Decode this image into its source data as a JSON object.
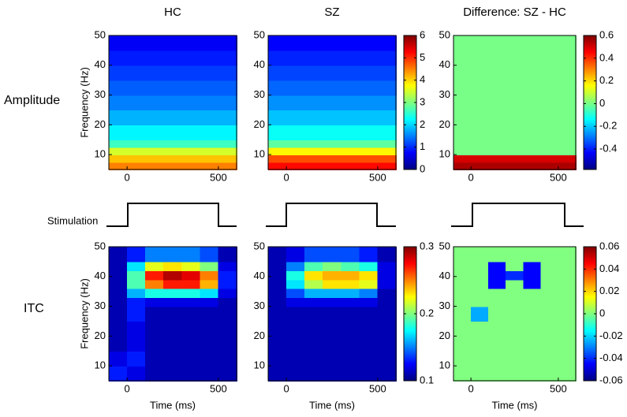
{
  "row_labels": [
    "Amplitude",
    "Stimulation",
    "ITC"
  ],
  "chart_data": [
    {
      "type": "heatmap",
      "title": "HC",
      "ylabel": "Frequency (Hz)",
      "colormap": "jet",
      "xbins": [
        -100,
        600
      ],
      "ybins": [
        5,
        7.5,
        10,
        12.5,
        15,
        20,
        25,
        30,
        35,
        40,
        45,
        50
      ],
      "values": [
        [
          4.5
        ],
        [
          4.1
        ],
        [
          3.5
        ],
        [
          2.6
        ],
        [
          2.2
        ],
        [
          1.8
        ],
        [
          1.5
        ],
        [
          1.3
        ],
        [
          1.1
        ],
        [
          0.9
        ],
        [
          0.7
        ]
      ],
      "xlim": [
        -100,
        600
      ],
      "ylim": [
        5,
        50
      ],
      "xticks": [
        0,
        500
      ],
      "yticks": [
        10,
        20,
        30,
        40,
        50
      ],
      "clim": [
        0,
        6
      ]
    },
    {
      "type": "heatmap",
      "title": "SZ",
      "colormap": "jet",
      "xbins": [
        -100,
        600
      ],
      "ybins": [
        5,
        7.5,
        10,
        12.5,
        15,
        20,
        25,
        30,
        35,
        40,
        45,
        50
      ],
      "values": [
        [
          5.2
        ],
        [
          4.8
        ],
        [
          3.8
        ],
        [
          2.8
        ],
        [
          2.3
        ],
        [
          1.9
        ],
        [
          1.6
        ],
        [
          1.35
        ],
        [
          1.15
        ],
        [
          0.95
        ],
        [
          0.75
        ]
      ],
      "xlim": [
        -100,
        600
      ],
      "ylim": [
        5,
        50
      ],
      "xticks": [
        0,
        500
      ],
      "yticks": [
        10,
        20,
        30,
        40,
        50
      ],
      "clim": [
        0,
        6
      ],
      "cticks": [
        0,
        1,
        2,
        3,
        4,
        5,
        6
      ]
    },
    {
      "type": "heatmap",
      "title": "Difference: SZ - HC",
      "colormap": "jet",
      "xbins": [
        -100,
        600
      ],
      "ybins": [
        5,
        7.5,
        10,
        12.5,
        15,
        20,
        25,
        30,
        35,
        40,
        45,
        50
      ],
      "values": [
        [
          0.55
        ],
        [
          0.5
        ],
        [
          0
        ],
        [
          0
        ],
        [
          0
        ],
        [
          0
        ],
        [
          0
        ],
        [
          0
        ],
        [
          0
        ],
        [
          0
        ],
        [
          0
        ]
      ],
      "xlim": [
        -100,
        600
      ],
      "ylim": [
        5,
        50
      ],
      "xticks": [
        0,
        500
      ],
      "yticks": [
        10,
        20,
        30,
        40,
        50
      ],
      "clim": [
        -0.58,
        0.6
      ],
      "cticks": [
        -0.4,
        -0.2,
        0,
        0.2,
        0.4,
        0.6
      ]
    },
    {
      "type": "heatmap",
      "ylabel": "Frequency (Hz)",
      "xlabel": "Time (ms)",
      "colormap": "jet",
      "xbins": [
        -100,
        0,
        100,
        200,
        300,
        400,
        500,
        600
      ],
      "ybins": [
        5,
        10,
        15,
        20,
        25,
        30,
        33,
        36,
        39,
        42,
        45,
        50
      ],
      "values": [
        [
          0.13,
          0.12,
          0.11,
          0.11,
          0.11,
          0.11,
          0.11
        ],
        [
          0.12,
          0.13,
          0.11,
          0.11,
          0.11,
          0.11,
          0.11
        ],
        [
          0.11,
          0.12,
          0.11,
          0.11,
          0.11,
          0.11,
          0.11
        ],
        [
          0.11,
          0.12,
          0.11,
          0.11,
          0.11,
          0.11,
          0.11
        ],
        [
          0.11,
          0.13,
          0.11,
          0.11,
          0.11,
          0.11,
          0.11
        ],
        [
          0.11,
          0.13,
          0.12,
          0.12,
          0.12,
          0.12,
          0.11
        ],
        [
          0.11,
          0.16,
          0.18,
          0.18,
          0.18,
          0.17,
          0.12
        ],
        [
          0.11,
          0.19,
          0.25,
          0.27,
          0.27,
          0.24,
          0.13
        ],
        [
          0.11,
          0.19,
          0.27,
          0.29,
          0.28,
          0.25,
          0.13
        ],
        [
          0.11,
          0.17,
          0.22,
          0.23,
          0.22,
          0.2,
          0.12
        ],
        [
          0.11,
          0.13,
          0.15,
          0.15,
          0.15,
          0.14,
          0.11
        ]
      ],
      "xlim": [
        -100,
        600
      ],
      "ylim": [
        5,
        50
      ],
      "xticks": [
        0,
        500
      ],
      "yticks": [
        10,
        20,
        30,
        40,
        50
      ],
      "clim": [
        0.1,
        0.3
      ]
    },
    {
      "type": "heatmap",
      "xlabel": "Time (ms)",
      "colormap": "jet",
      "xbins": [
        -100,
        0,
        100,
        200,
        300,
        400,
        500,
        600
      ],
      "ybins": [
        5,
        10,
        15,
        20,
        25,
        30,
        33,
        36,
        39,
        42,
        45,
        50
      ],
      "values": [
        [
          0.11,
          0.11,
          0.11,
          0.11,
          0.11,
          0.11,
          0.11
        ],
        [
          0.11,
          0.11,
          0.11,
          0.11,
          0.11,
          0.11,
          0.11
        ],
        [
          0.11,
          0.11,
          0.11,
          0.11,
          0.11,
          0.11,
          0.11
        ],
        [
          0.11,
          0.11,
          0.11,
          0.11,
          0.11,
          0.11,
          0.11
        ],
        [
          0.11,
          0.11,
          0.11,
          0.11,
          0.11,
          0.11,
          0.11
        ],
        [
          0.11,
          0.12,
          0.12,
          0.12,
          0.12,
          0.12,
          0.11
        ],
        [
          0.11,
          0.14,
          0.16,
          0.16,
          0.16,
          0.15,
          0.11
        ],
        [
          0.11,
          0.17,
          0.21,
          0.23,
          0.23,
          0.22,
          0.12
        ],
        [
          0.11,
          0.18,
          0.23,
          0.24,
          0.24,
          0.23,
          0.12
        ],
        [
          0.11,
          0.15,
          0.19,
          0.2,
          0.19,
          0.18,
          0.12
        ],
        [
          0.11,
          0.12,
          0.14,
          0.14,
          0.14,
          0.13,
          0.11
        ]
      ],
      "xlim": [
        -100,
        600
      ],
      "ylim": [
        5,
        50
      ],
      "xticks": [
        0,
        500
      ],
      "yticks": [
        10,
        20,
        30,
        40,
        50
      ],
      "clim": [
        0.1,
        0.3
      ],
      "cticks": [
        0.1,
        0.2,
        0.3
      ]
    },
    {
      "type": "heatmap",
      "xlabel": "Time (ms)",
      "colormap": "jet",
      "xbins": [
        -100,
        0,
        100,
        200,
        300,
        400,
        500,
        600
      ],
      "ybins": [
        5,
        10,
        15,
        20,
        25,
        30,
        33,
        36,
        39,
        42,
        45,
        50
      ],
      "values": [
        [
          0,
          0,
          0,
          0,
          0,
          0,
          0
        ],
        [
          0,
          0,
          0,
          0,
          0,
          0,
          0
        ],
        [
          0,
          0,
          0,
          0,
          0,
          0,
          0
        ],
        [
          0,
          0,
          0,
          0,
          0,
          0,
          0
        ],
        [
          0,
          -0.025,
          0,
          0,
          0,
          0,
          0
        ],
        [
          0,
          0,
          0,
          0,
          0,
          0,
          0
        ],
        [
          0,
          0,
          0,
          0,
          0,
          0,
          0
        ],
        [
          0,
          0,
          -0.045,
          0,
          -0.045,
          0,
          0
        ],
        [
          0,
          0,
          -0.045,
          -0.04,
          -0.045,
          0,
          0
        ],
        [
          0,
          0,
          -0.045,
          0,
          -0.045,
          0,
          0
        ],
        [
          0,
          0,
          0,
          0,
          0,
          0,
          0
        ]
      ],
      "xlim": [
        -100,
        600
      ],
      "ylim": [
        5,
        50
      ],
      "xticks": [
        0,
        500
      ],
      "yticks": [
        10,
        20,
        30,
        40,
        50
      ],
      "clim": [
        -0.06,
        0.06
      ],
      "cticks": [
        -0.06,
        -0.04,
        -0.02,
        0,
        0.02,
        0.04,
        0.06
      ]
    }
  ]
}
